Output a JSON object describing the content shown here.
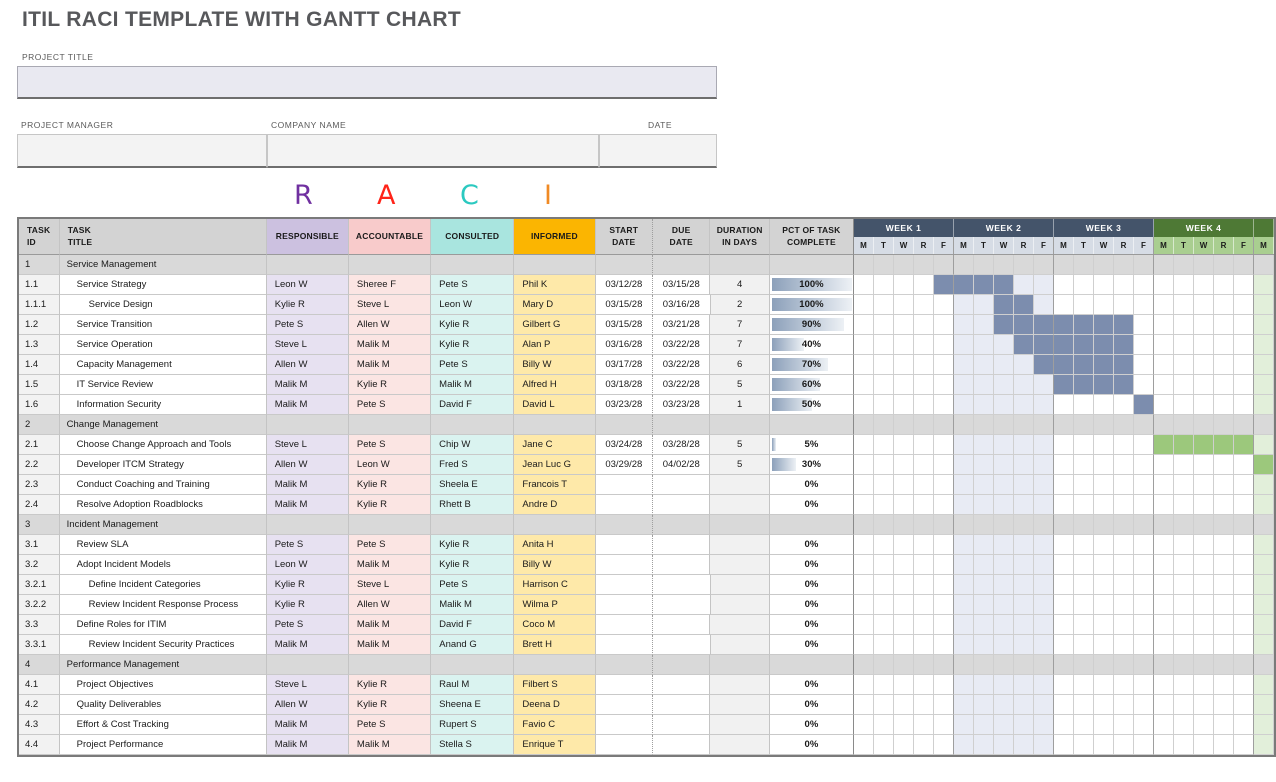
{
  "title": "ITIL RACI TEMPLATE WITH GANTT CHART",
  "form": {
    "project_title_label": "PROJECT TITLE",
    "project_title_value": "",
    "project_manager_label": "PROJECT MANAGER",
    "project_manager_value": "",
    "company_name_label": "COMPANY NAME",
    "company_name_value": "",
    "date_label": "DATE",
    "date_value": ""
  },
  "raci_letters": [
    {
      "letter": "R",
      "color": "#7030A0"
    },
    {
      "letter": "A",
      "color": "#FF2419"
    },
    {
      "letter": "C",
      "color": "#2BC9C0"
    },
    {
      "letter": "I",
      "color": "#F08A24"
    }
  ],
  "table": {
    "headers": {
      "task_id": "TASK\nID",
      "task_title": "TASK\nTITLE",
      "responsible": "RESPONSIBLE",
      "accountable": "ACCOUNTABLE",
      "consulted": "CONSULTED",
      "informed": "INFORMED",
      "start_date": "START\nDATE",
      "due_date": "DUE\nDATE",
      "duration": "DURATION\nIN DAYS",
      "pct": "PCT OF TASK\nCOMPLETE"
    },
    "weeks": [
      {
        "label": "WEEK 1",
        "theme": "blue"
      },
      {
        "label": "WEEK 2",
        "theme": "blue"
      },
      {
        "label": "WEEK 3",
        "theme": "blue"
      },
      {
        "label": "WEEK 4",
        "theme": "green"
      },
      {
        "label": "",
        "theme": "green",
        "partial": true
      }
    ],
    "day_letters": [
      "M",
      "T",
      "W",
      "R",
      "F"
    ],
    "rows": [
      {
        "id": "1",
        "title": "Service Management",
        "type": "section"
      },
      {
        "id": "1.1",
        "title": "Service Strategy",
        "indent": 1,
        "responsible": "Leon W",
        "accountable": "Sheree F",
        "consulted": "Pete S",
        "informed": "Phil K",
        "start": "03/12/28",
        "due": "03/15/28",
        "duration": "4",
        "pct": 100,
        "bar": {
          "from": 5,
          "to": 8,
          "color": "blue"
        }
      },
      {
        "id": "1.1.1",
        "title": "Service Design",
        "indent": 2,
        "responsible": "Kylie R",
        "accountable": "Steve L",
        "consulted": "Leon W",
        "informed": "Mary D",
        "start": "03/15/28",
        "due": "03/16/28",
        "duration": "2",
        "pct": 100,
        "bar": {
          "from": 8,
          "to": 9,
          "color": "blue"
        }
      },
      {
        "id": "1.2",
        "title": "Service Transition",
        "indent": 1,
        "responsible": "Pete S",
        "accountable": "Allen W",
        "consulted": "Kylie R",
        "informed": "Gilbert G",
        "start": "03/15/28",
        "due": "03/21/28",
        "duration": "7",
        "pct": 90,
        "bar": {
          "from": 8,
          "to": 14,
          "color": "blue"
        }
      },
      {
        "id": "1.3",
        "title": "Service Operation",
        "indent": 1,
        "responsible": "Steve L",
        "accountable": "Malik M",
        "consulted": "Kylie R",
        "informed": "Alan P",
        "start": "03/16/28",
        "due": "03/22/28",
        "duration": "7",
        "pct": 40,
        "bar": {
          "from": 9,
          "to": 14,
          "color": "blue"
        }
      },
      {
        "id": "1.4",
        "title": "Capacity Management",
        "indent": 1,
        "responsible": "Allen W",
        "accountable": "Malik M",
        "consulted": "Pete S",
        "informed": "Billy W",
        "start": "03/17/28",
        "due": "03/22/28",
        "duration": "6",
        "pct": 70,
        "bar": {
          "from": 10,
          "to": 14,
          "color": "blue"
        }
      },
      {
        "id": "1.5",
        "title": "IT Service Review",
        "indent": 1,
        "responsible": "Malik M",
        "accountable": "Kylie R",
        "consulted": "Malik M",
        "informed": "Alfred H",
        "start": "03/18/28",
        "due": "03/22/28",
        "duration": "5",
        "pct": 60,
        "bar": {
          "from": 11,
          "to": 14,
          "color": "blue"
        }
      },
      {
        "id": "1.6",
        "title": "Information Security",
        "indent": 1,
        "responsible": "Malik M",
        "accountable": "Pete S",
        "consulted": "David F",
        "informed": "David L",
        "start": "03/23/28",
        "due": "03/23/28",
        "duration": "1",
        "pct": 50,
        "bar": {
          "from": 15,
          "to": 15,
          "color": "blue"
        }
      },
      {
        "id": "2",
        "title": "Change Management",
        "type": "section"
      },
      {
        "id": "2.1",
        "title": "Choose Change Approach and Tools",
        "indent": 1,
        "responsible": "Steve L",
        "accountable": "Pete S",
        "consulted": "Chip W",
        "informed": "Jane C",
        "start": "03/24/28",
        "due": "03/28/28",
        "duration": "5",
        "pct": 5,
        "bar": {
          "from": 16,
          "to": 20,
          "color": "green"
        }
      },
      {
        "id": "2.2",
        "title": "Developer ITCM Strategy",
        "indent": 1,
        "responsible": "Allen W",
        "accountable": "Leon W",
        "consulted": "Fred S",
        "informed": "Jean Luc G",
        "start": "03/29/28",
        "due": "04/02/28",
        "duration": "5",
        "pct": 30,
        "bar": {
          "from": 21,
          "to": 21,
          "color": "green"
        }
      },
      {
        "id": "2.3",
        "title": "Conduct Coaching and Training",
        "indent": 1,
        "responsible": "Malik M",
        "accountable": "Kylie R",
        "consulted": "Sheela E",
        "informed": "Francois T",
        "start": "",
        "due": "",
        "duration": "",
        "pct": 0
      },
      {
        "id": "2.4",
        "title": "Resolve Adoption Roadblocks",
        "indent": 1,
        "responsible": "Malik M",
        "accountable": "Kylie R",
        "consulted": "Rhett B",
        "informed": "Andre D",
        "start": "",
        "due": "",
        "duration": "",
        "pct": 0
      },
      {
        "id": "3",
        "title": "Incident Management",
        "type": "section"
      },
      {
        "id": "3.1",
        "title": "Review SLA",
        "indent": 1,
        "responsible": "Pete S",
        "accountable": "Pete S",
        "consulted": "Kylie R",
        "informed": "Anita H",
        "start": "",
        "due": "",
        "duration": "",
        "pct": 0
      },
      {
        "id": "3.2",
        "title": "Adopt Incident Models",
        "indent": 1,
        "responsible": "Leon W",
        "accountable": "Malik M",
        "consulted": "Kylie R",
        "informed": "Billy W",
        "start": "",
        "due": "",
        "duration": "",
        "pct": 0
      },
      {
        "id": "3.2.1",
        "title": "Define Incident Categories",
        "indent": 2,
        "responsible": "Kylie R",
        "accountable": "Steve L",
        "consulted": "Pete S",
        "informed": "Harrison C",
        "start": "",
        "due": "",
        "duration": "",
        "pct": 0
      },
      {
        "id": "3.2.2",
        "title": "Review Incident Response Process",
        "indent": 2,
        "responsible": "Kylie R",
        "accountable": "Allen W",
        "consulted": "Malik M",
        "informed": "Wilma P",
        "start": "",
        "due": "",
        "duration": "",
        "pct": 0
      },
      {
        "id": "3.3",
        "title": "Define Roles for ITIM",
        "indent": 1,
        "responsible": "Pete S",
        "accountable": "Malik M",
        "consulted": "David F",
        "informed": "Coco M",
        "start": "",
        "due": "",
        "duration": "",
        "pct": 0
      },
      {
        "id": "3.3.1",
        "title": "Review Incident Security Practices",
        "indent": 2,
        "responsible": "Malik M",
        "accountable": "Malik M",
        "consulted": "Anand G",
        "informed": "Brett H",
        "start": "",
        "due": "",
        "duration": "",
        "pct": 0
      },
      {
        "id": "4",
        "title": "Performance Management",
        "type": "section"
      },
      {
        "id": "4.1",
        "title": "Project Objectives",
        "indent": 1,
        "responsible": "Steve L",
        "accountable": "Kylie R",
        "consulted": "Raul M",
        "informed": "Filbert S",
        "start": "",
        "due": "",
        "duration": "",
        "pct": 0
      },
      {
        "id": "4.2",
        "title": "Quality Deliverables",
        "indent": 1,
        "responsible": "Allen W",
        "accountable": "Kylie R",
        "consulted": "Sheena E",
        "informed": "Deena D",
        "start": "",
        "due": "",
        "duration": "",
        "pct": 0
      },
      {
        "id": "4.3",
        "title": "Effort & Cost Tracking",
        "indent": 1,
        "responsible": "Malik M",
        "accountable": "Pete S",
        "consulted": "Rupert S",
        "informed": "Favio C",
        "start": "",
        "due": "",
        "duration": "",
        "pct": 0
      },
      {
        "id": "4.4",
        "title": "Project Performance",
        "indent": 1,
        "responsible": "Malik M",
        "accountable": "Malik M",
        "consulted": "Stella S",
        "informed": "Enrique T",
        "start": "",
        "due": "",
        "duration": "",
        "pct": 0
      }
    ]
  },
  "colors": {
    "responsible_header": "#CCC1E0",
    "responsible_cell": "#E7E1F1",
    "accountable_header": "#F8CBCB",
    "accountable_cell": "#FBE5E3",
    "consulted_header": "#A9E5DF",
    "consulted_cell": "#DAF3F0",
    "informed_header": "#FBB501",
    "informed_cell": "#FEE9A9",
    "section_row": "#D9D9D9",
    "duration_cell": "#F1F1F1",
    "week_header_blue": "#44546A",
    "week_header_green": "#4E7935",
    "day_cell_blue": "#D6DCE5",
    "day_cell_green": "#A9CE90",
    "band_blue": "#E8EBF4",
    "band_green": "#E2EFDA",
    "bar_blue": "#7C8DAE",
    "bar_green": "#9CC87C",
    "pct_bar_from": "#8CA0BA",
    "pct_bar_to": "#EDF1F5"
  }
}
